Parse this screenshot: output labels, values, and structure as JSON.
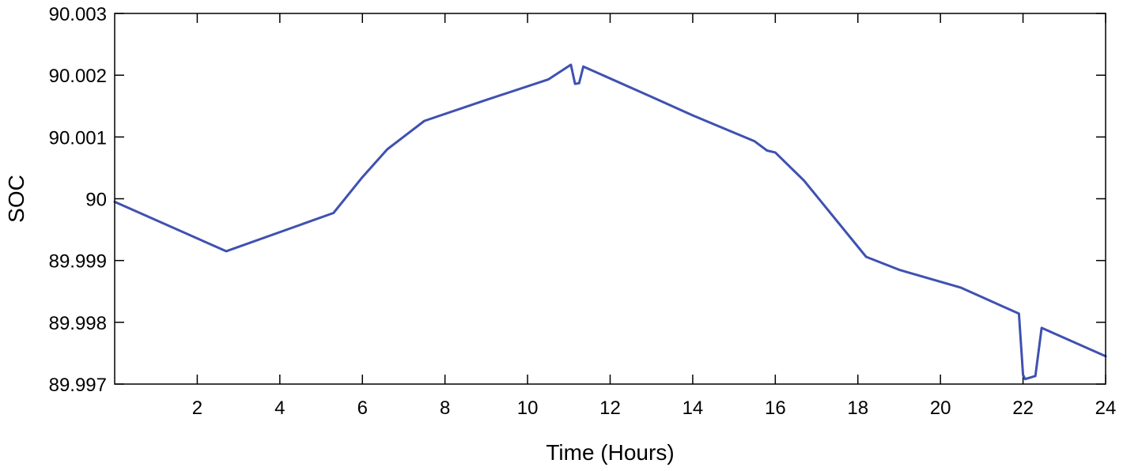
{
  "chart_data": {
    "type": "line",
    "title": "",
    "xlabel": "Time (Hours)",
    "ylabel": "SOC",
    "xlim": [
      0,
      24
    ],
    "ylim": [
      89.997,
      90.003
    ],
    "x_ticks": [
      2,
      4,
      6,
      8,
      10,
      12,
      14,
      16,
      18,
      20,
      22,
      24
    ],
    "y_ticks": [
      89.997,
      89.998,
      89.999,
      90,
      90.001,
      90.002,
      90.003
    ],
    "x_tick_labels": [
      "2",
      "4",
      "6",
      "8",
      "10",
      "12",
      "14",
      "16",
      "18",
      "20",
      "22",
      "24"
    ],
    "y_tick_labels": [
      "89.997",
      "89.998",
      "89.999",
      "90",
      "90.001",
      "90.002",
      "90.003"
    ],
    "grid": false,
    "line_color": "#3f51b0",
    "series": [
      {
        "x": [
          0,
          2.7,
          5.3,
          6.0,
          6.6,
          7.5,
          9.0,
          10.5,
          11.05,
          11.15,
          11.25,
          11.35,
          13.0,
          14.0,
          15.5,
          15.8,
          16.0,
          16.7,
          18.2,
          19.0,
          20.5,
          21.9,
          22.0,
          22.05,
          22.3,
          22.45,
          24.0
        ],
        "y": [
          89.99995,
          89.99915,
          89.99977,
          90.00035,
          90.0008,
          90.00126,
          90.0016,
          90.00193,
          90.00217,
          90.00186,
          90.00187,
          90.00214,
          90.00165,
          90.00135,
          90.00093,
          90.00078,
          90.00075,
          90.00029,
          89.99906,
          89.99885,
          89.99856,
          89.99814,
          89.99715,
          89.99708,
          89.99713,
          89.99791,
          89.99745
        ]
      }
    ]
  }
}
